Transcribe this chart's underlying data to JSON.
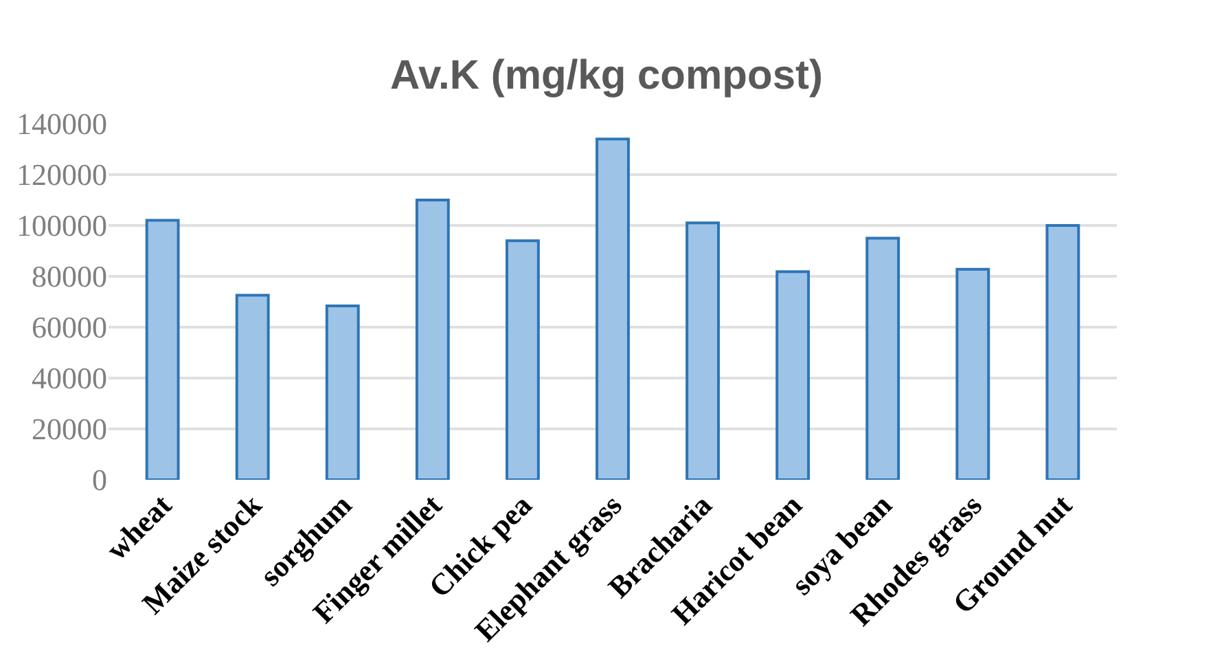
{
  "chart_data": {
    "type": "bar",
    "title": "Av.K (mg/kg compost)",
    "categories": [
      "wheat",
      "Maize stock",
      "sorghum",
      "Finger millet",
      "Chick pea",
      "Elephant grass",
      "Bracharia",
      "Haricot bean",
      "soya bean",
      "Rhodes grass",
      "Ground nut"
    ],
    "values": [
      102000,
      72600,
      68400,
      110000,
      94000,
      134000,
      101000,
      81800,
      95000,
      82800,
      100000
    ],
    "color": "#9dc3e6",
    "ylim": [
      0,
      140000
    ],
    "yticks": [
      0,
      20000,
      40000,
      60000,
      80000,
      100000,
      120000,
      140000
    ],
    "grid": "y"
  }
}
